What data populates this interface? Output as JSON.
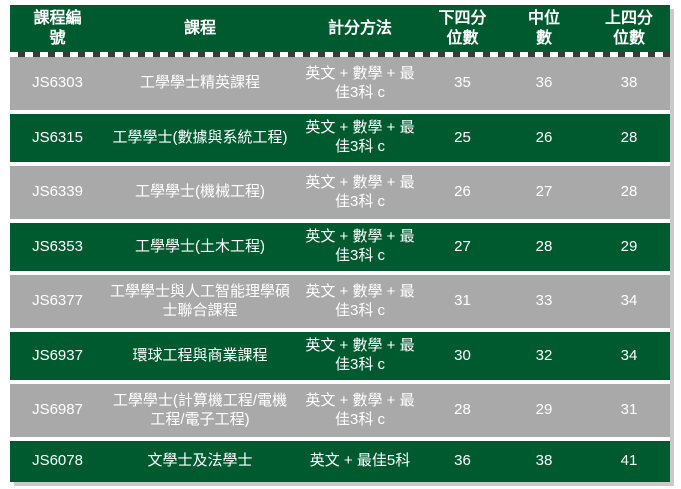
{
  "colors": {
    "green": "#005A30",
    "gray": "#A9A9A9",
    "text": "#FFFFFF",
    "dash": "#3A3A3A",
    "shadow": "#CACACA"
  },
  "table": {
    "columns": [
      {
        "label": "課程編號"
      },
      {
        "label": "課程"
      },
      {
        "label": "計分方法"
      },
      {
        "label": "下四分位數"
      },
      {
        "label": "中位數"
      },
      {
        "label": "上四分位數"
      }
    ],
    "rows": [
      {
        "code": "JS6303",
        "course": "工學學士精英課程",
        "method": "英文 + 數學 + 最佳3科 c",
        "q1": "35",
        "median": "36",
        "q3": "38"
      },
      {
        "code": "JS6315",
        "course": "工學學士(數據與系統工程)",
        "method": "英文 + 數學 + 最佳3科 c",
        "q1": "25",
        "median": "26",
        "q3": "28"
      },
      {
        "code": "JS6339",
        "course": "工學學士(機械工程)",
        "method": "英文 + 數學 + 最佳3科 c",
        "q1": "26",
        "median": "27",
        "q3": "28"
      },
      {
        "code": "JS6353",
        "course": "工學學士(土木工程)",
        "method": "英文 + 數學 + 最佳3科 c",
        "q1": "27",
        "median": "28",
        "q3": "29"
      },
      {
        "code": "JS6377",
        "course": "工學學士與人工智能理學碩士聯合課程",
        "method": "英文 + 數學 + 最佳3科 c",
        "q1": "31",
        "median": "33",
        "q3": "34"
      },
      {
        "code": "JS6937",
        "course": "環球工程與商業課程",
        "method": "英文 + 數學 + 最佳3科 c",
        "q1": "30",
        "median": "32",
        "q3": "34"
      },
      {
        "code": "JS6987",
        "course": "工學學士(計算機工程/電機工程/電子工程)",
        "method": "英文 + 數學 + 最佳3科 c",
        "q1": "28",
        "median": "29",
        "q3": "31"
      },
      {
        "code": "JS6078",
        "course": "文學士及法學士",
        "method": "英文 + 最佳5科",
        "q1": "36",
        "median": "38",
        "q3": "41"
      }
    ]
  }
}
